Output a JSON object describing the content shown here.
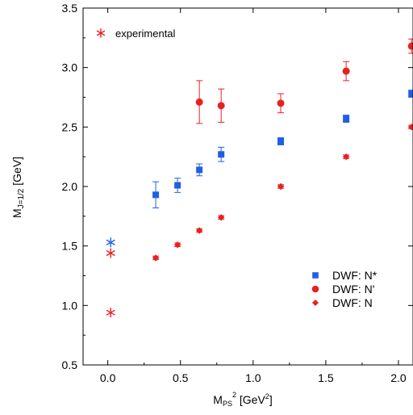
{
  "chart_data": {
    "type": "scatter",
    "title": "",
    "xlabel": {
      "main": "M",
      "sub": "PS",
      "sup": "2",
      "unit_pre": " [GeV",
      "unit_sup": "2",
      "unit_post": "]"
    },
    "ylabel": {
      "main": "M",
      "sub": "J=1/2",
      "unit": " [GeV]"
    },
    "xlim": [
      -0.17,
      2.1
    ],
    "ylim": [
      0.5,
      3.5
    ],
    "xticks": [
      0.0,
      0.5,
      1.0,
      1.5,
      2.0
    ],
    "xtick_labels": [
      "0.0",
      "0.5",
      "1.0",
      "1.5",
      "2.0"
    ],
    "yticks": [
      0.5,
      1.0,
      1.5,
      2.0,
      2.5,
      3.0,
      3.5
    ],
    "ytick_labels": [
      "0.5",
      "1.0",
      "1.5",
      "2.0",
      "2.5",
      "3.0",
      "3.5"
    ],
    "legend": {
      "placement": "bottom-right",
      "entries": [
        {
          "label": "DWF: N*",
          "marker": "square",
          "color": "#1f5fe6"
        },
        {
          "label": "DWF: N'",
          "marker": "circle",
          "color": "#e8211f"
        },
        {
          "label": "DWF: N",
          "marker": "diamond",
          "color": "#e8211f"
        }
      ]
    },
    "annotation": {
      "label": "experimental",
      "marker": "asterisk",
      "color": "#e8211f"
    },
    "series": [
      {
        "name": "DWF: N*",
        "marker": "square",
        "color": "#1f5fe6",
        "points": [
          {
            "x": 0.33,
            "y": 1.93,
            "err": 0.11
          },
          {
            "x": 0.48,
            "y": 2.01,
            "err": 0.06
          },
          {
            "x": 0.63,
            "y": 2.14,
            "err": 0.05
          },
          {
            "x": 0.78,
            "y": 2.27,
            "err": 0.06
          },
          {
            "x": 1.19,
            "y": 2.38,
            "err": 0.03
          },
          {
            "x": 1.64,
            "y": 2.57,
            "err": 0.03
          },
          {
            "x": 2.09,
            "y": 2.78,
            "err": 0.03
          }
        ]
      },
      {
        "name": "DWF: N'",
        "marker": "circle",
        "color": "#e8211f",
        "points": [
          {
            "x": 0.63,
            "y": 2.71,
            "err": 0.18
          },
          {
            "x": 0.78,
            "y": 2.68,
            "err": 0.14
          },
          {
            "x": 1.19,
            "y": 2.7,
            "err": 0.08
          },
          {
            "x": 1.64,
            "y": 2.97,
            "err": 0.08
          },
          {
            "x": 2.09,
            "y": 3.18,
            "err": 0.06
          }
        ]
      },
      {
        "name": "DWF: N",
        "marker": "diamond",
        "color": "#e8211f",
        "points": [
          {
            "x": 0.33,
            "y": 1.4,
            "err": 0.015
          },
          {
            "x": 0.48,
            "y": 1.51,
            "err": 0.015
          },
          {
            "x": 0.63,
            "y": 1.63,
            "err": 0.015
          },
          {
            "x": 0.78,
            "y": 1.74,
            "err": 0.015
          },
          {
            "x": 1.19,
            "y": 2.0,
            "err": 0.015
          },
          {
            "x": 1.64,
            "y": 2.25,
            "err": 0.015
          },
          {
            "x": 2.09,
            "y": 2.5,
            "err": 0.015
          }
        ]
      },
      {
        "name": "experimental",
        "marker": "asterisk",
        "points": [
          {
            "x": 0.02,
            "y": 1.53,
            "color": "#1f5fe6"
          },
          {
            "x": 0.02,
            "y": 1.44,
            "color": "#e8211f"
          },
          {
            "x": 0.02,
            "y": 0.94,
            "color": "#e8211f"
          }
        ]
      }
    ]
  }
}
